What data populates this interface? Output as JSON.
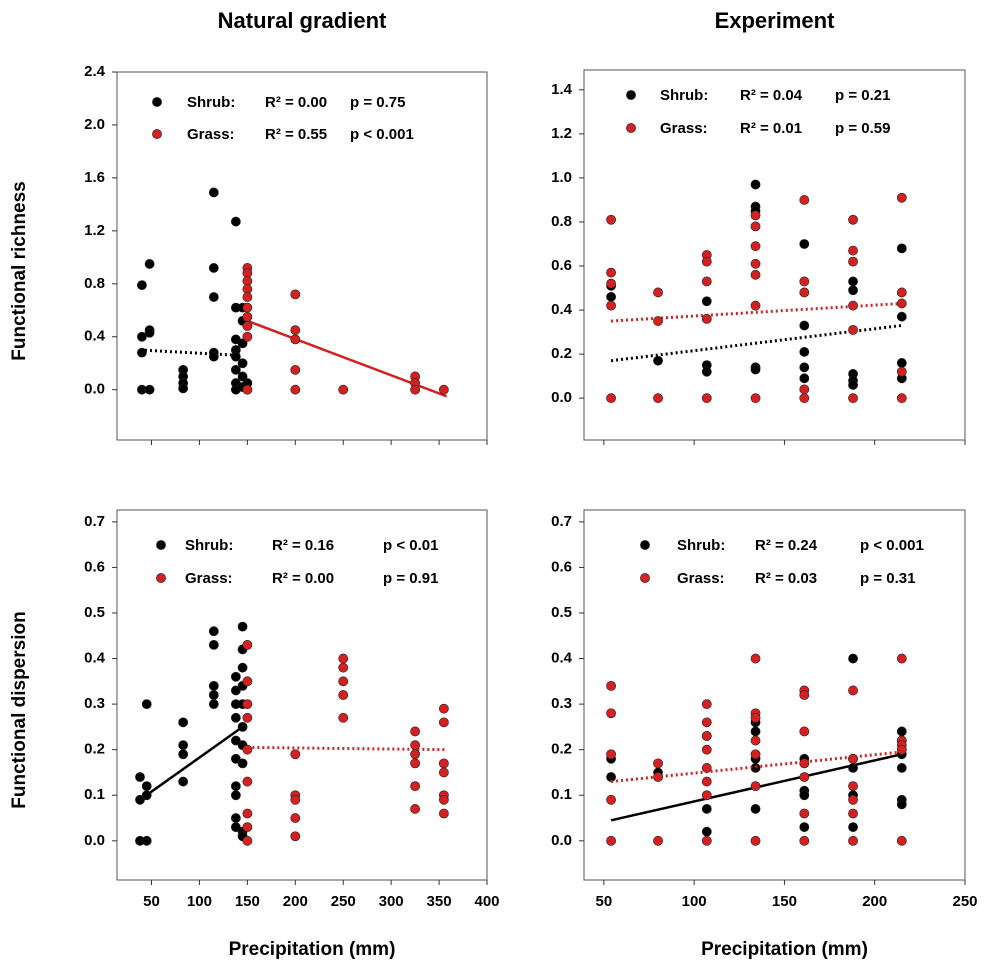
{
  "chart_data": [
    {
      "type": "scatter",
      "title": "Natural gradient",
      "ylabel": "Functional richness",
      "show_xtick_labels": false,
      "xlim": [
        14,
        400
      ],
      "ylim": [
        -0.38,
        2.4
      ],
      "xticks": [
        50,
        100,
        150,
        200,
        250,
        300,
        350,
        400
      ],
      "yticks": [
        {
          "value": 0,
          "label": "0.0"
        },
        0.4,
        0.8,
        1.2,
        1.6,
        {
          "value": 2,
          "label": "2.0"
        },
        2.4
      ],
      "series": [
        {
          "name": "Shrub:",
          "color": "#000000",
          "stat_r2": "R² = 0.00",
          "stat_p": "p = 0.75",
          "stat_color": "#8c8c8c",
          "x": [
            40,
            40,
            40,
            40,
            48,
            48,
            48,
            48,
            83,
            83,
            83,
            83,
            115,
            115,
            115,
            115,
            115,
            138,
            138,
            138,
            138,
            138,
            138,
            138,
            138,
            145,
            145,
            145,
            145,
            145,
            145,
            150,
            150
          ],
          "y": [
            0.79,
            0.4,
            0.28,
            0,
            0.95,
            0.45,
            0.43,
            0,
            0.15,
            0.1,
            0.05,
            0.01,
            1.49,
            0.92,
            0.7,
            0.28,
            0.25,
            1.27,
            0.62,
            0.38,
            0.3,
            0.25,
            0.15,
            0.05,
            0,
            0.62,
            0.52,
            0.35,
            0.2,
            0.1,
            0.02,
            0.05,
            0
          ],
          "fit": {
            "x": [
              38,
              140
            ],
            "y": [
              0.3,
              0.26
            ],
            "style": "dotted"
          }
        },
        {
          "name": "Grass:",
          "color": "#d42020",
          "stat_r2": "R² = 0.55",
          "stat_p": "p < 0.001",
          "stat_color": "#000000",
          "x": [
            150,
            150,
            150,
            150,
            150,
            150,
            150,
            150,
            150,
            150,
            200,
            200,
            200,
            200,
            200,
            250,
            325,
            325,
            325,
            355
          ],
          "y": [
            0.92,
            0.88,
            0.82,
            0.76,
            0.7,
            0.62,
            0.55,
            0.48,
            0.4,
            0,
            0.72,
            0.45,
            0.38,
            0.15,
            0,
            0,
            0.1,
            0.05,
            0,
            0
          ],
          "fit": {
            "x": [
              150,
              358
            ],
            "y": [
              0.52,
              -0.05
            ],
            "style": "solid"
          }
        }
      ]
    },
    {
      "type": "scatter",
      "title": "Experiment",
      "show_xtick_labels": false,
      "xlim": [
        39,
        250
      ],
      "ylim": [
        -0.19,
        1.49
      ],
      "xticks": [
        50,
        100,
        150,
        200,
        250
      ],
      "yticks": [
        {
          "value": 0,
          "label": "0.0"
        },
        0.2,
        0.4,
        0.6,
        0.8,
        {
          "value": 1,
          "label": "1.0"
        },
        1.2,
        1.4
      ],
      "series": [
        {
          "name": "Shrub:",
          "color": "#000000",
          "stat_r2": "R² = 0.04",
          "stat_p": "p = 0.21",
          "stat_color": "#8c8c8c",
          "x": [
            54,
            54,
            80,
            107,
            107,
            107,
            134,
            134,
            134,
            134,
            134,
            161,
            161,
            161,
            161,
            161,
            188,
            188,
            188,
            188,
            188,
            215,
            215,
            215,
            215
          ],
          "y": [
            0.51,
            0.46,
            0.17,
            0.44,
            0.15,
            0.12,
            0.97,
            0.87,
            0.85,
            0.14,
            0.13,
            0.7,
            0.33,
            0.21,
            0.14,
            0.09,
            0.53,
            0.49,
            0.11,
            0.08,
            0.06,
            0.68,
            0.37,
            0.16,
            0.09
          ],
          "fit": {
            "x": [
              54,
              215
            ],
            "y": [
              0.17,
              0.33
            ],
            "style": "dotted"
          }
        },
        {
          "name": "Grass:",
          "color": "#d42020",
          "stat_r2": "R² = 0.01",
          "stat_p": "p = 0.59",
          "stat_color": "#8c8c8c",
          "x": [
            54,
            54,
            54,
            54,
            54,
            80,
            80,
            80,
            107,
            107,
            107,
            107,
            107,
            134,
            134,
            134,
            134,
            134,
            134,
            134,
            161,
            161,
            161,
            161,
            161,
            188,
            188,
            188,
            188,
            188,
            188,
            215,
            215,
            215,
            215,
            215
          ],
          "y": [
            0.81,
            0.57,
            0.52,
            0.42,
            0,
            0.48,
            0.35,
            0,
            0.65,
            0.62,
            0.53,
            0.36,
            0,
            0.83,
            0.78,
            0.69,
            0.61,
            0.56,
            0.42,
            0,
            0.9,
            0.53,
            0.48,
            0.04,
            0,
            0.81,
            0.67,
            0.62,
            0.42,
            0.31,
            0,
            0.91,
            0.48,
            0.43,
            0.12,
            0
          ],
          "fit": {
            "x": [
              54,
              215
            ],
            "y": [
              0.35,
              0.43
            ],
            "style": "dotted"
          }
        }
      ]
    },
    {
      "type": "scatter",
      "ylabel": "Functional dispersion",
      "xlabel": "Precipitation (mm)",
      "show_xtick_labels": true,
      "xlim": [
        14,
        400
      ],
      "ylim": [
        -0.086,
        0.726
      ],
      "xticks": [
        50,
        100,
        150,
        200,
        250,
        300,
        350,
        400
      ],
      "yticks": [
        {
          "value": 0,
          "label": "0.0"
        },
        0.1,
        0.2,
        0.3,
        0.4,
        0.5,
        0.6,
        0.7
      ],
      "series": [
        {
          "name": "Shrub:",
          "color": "#000000",
          "stat_r2": "R² = 0.16",
          "stat_p": "p < 0.01",
          "stat_color": "#000000",
          "x": [
            38,
            38,
            38,
            45,
            45,
            45,
            45,
            83,
            83,
            83,
            83,
            115,
            115,
            115,
            115,
            115,
            138,
            138,
            138,
            138,
            138,
            138,
            138,
            138,
            138,
            138,
            145,
            145,
            145,
            145,
            145,
            145,
            145,
            145,
            145,
            145
          ],
          "y": [
            0.14,
            0.09,
            0,
            0.3,
            0.12,
            0.1,
            0,
            0.26,
            0.21,
            0.19,
            0.13,
            0.46,
            0.43,
            0.34,
            0.32,
            0.3,
            0.36,
            0.33,
            0.3,
            0.27,
            0.22,
            0.18,
            0.12,
            0.1,
            0.05,
            0.03,
            0.47,
            0.42,
            0.38,
            0.34,
            0.3,
            0.25,
            0.21,
            0.17,
            0.02,
            0.01
          ],
          "fit": {
            "x": [
              38,
              145
            ],
            "y": [
              0.09,
              0.25
            ],
            "style": "solid"
          }
        },
        {
          "name": "Grass:",
          "color": "#d42020",
          "stat_r2": "R² = 0.00",
          "stat_p": "p = 0.91",
          "stat_color": "#8c8c8c",
          "x": [
            150,
            150,
            150,
            150,
            150,
            150,
            150,
            150,
            150,
            200,
            200,
            200,
            200,
            200,
            250,
            250,
            250,
            250,
            250,
            325,
            325,
            325,
            325,
            325,
            325,
            355,
            355,
            355,
            355,
            355,
            355,
            355
          ],
          "y": [
            0.43,
            0.35,
            0.3,
            0.27,
            0.2,
            0.13,
            0.06,
            0.03,
            0,
            0.19,
            0.1,
            0.09,
            0.05,
            0.01,
            0.4,
            0.38,
            0.35,
            0.32,
            0.27,
            0.24,
            0.21,
            0.19,
            0.17,
            0.12,
            0.07,
            0.29,
            0.26,
            0.17,
            0.15,
            0.1,
            0.09,
            0.06
          ],
          "fit": {
            "x": [
              150,
              358
            ],
            "y": [
              0.205,
              0.2
            ],
            "style": "dotted"
          }
        }
      ]
    },
    {
      "type": "scatter",
      "xlabel": "Precipitation (mm)",
      "show_xtick_labels": true,
      "xlim": [
        39,
        250
      ],
      "ylim": [
        -0.086,
        0.726
      ],
      "xticks": [
        50,
        100,
        150,
        200,
        250
      ],
      "yticks": [
        {
          "value": 0,
          "label": "0.0"
        },
        0.1,
        0.2,
        0.3,
        0.4,
        0.5,
        0.6,
        0.7
      ],
      "series": [
        {
          "name": "Shrub:",
          "color": "#000000",
          "stat_r2": "R² = 0.24",
          "stat_p": "p < 0.001",
          "stat_color": "#000000",
          "x": [
            54,
            54,
            80,
            107,
            107,
            107,
            134,
            134,
            134,
            134,
            134,
            161,
            161,
            161,
            161,
            188,
            188,
            188,
            188,
            188,
            215,
            215,
            215,
            215,
            215,
            215
          ],
          "y": [
            0.18,
            0.14,
            0.15,
            0.23,
            0.07,
            0.02,
            0.26,
            0.24,
            0.18,
            0.16,
            0.07,
            0.18,
            0.11,
            0.1,
            0.03,
            0.4,
            0.18,
            0.16,
            0.1,
            0.03,
            0.24,
            0.22,
            0.19,
            0.16,
            0.09,
            0.08
          ],
          "fit": {
            "x": [
              54,
              215
            ],
            "y": [
              0.045,
              0.19
            ],
            "style": "solid"
          }
        },
        {
          "name": "Grass:",
          "color": "#d42020",
          "stat_r2": "R² = 0.03",
          "stat_p": "p = 0.31",
          "stat_color": "#8c8c8c",
          "x": [
            54,
            54,
            54,
            54,
            54,
            80,
            80,
            80,
            107,
            107,
            107,
            107,
            107,
            107,
            107,
            107,
            134,
            134,
            134,
            134,
            134,
            134,
            134,
            161,
            161,
            161,
            161,
            161,
            161,
            161,
            188,
            188,
            188,
            188,
            188,
            188,
            215,
            215,
            215,
            215,
            215
          ],
          "y": [
            0.34,
            0.28,
            0.19,
            0.09,
            0,
            0.17,
            0.14,
            0,
            0.3,
            0.26,
            0.23,
            0.2,
            0.16,
            0.13,
            0.1,
            0,
            0.4,
            0.28,
            0.27,
            0.22,
            0.19,
            0.12,
            0,
            0.33,
            0.32,
            0.24,
            0.17,
            0.14,
            0.06,
            0,
            0.33,
            0.18,
            0.12,
            0.09,
            0.06,
            0,
            0.4,
            0.22,
            0.21,
            0.2,
            0
          ],
          "fit": {
            "x": [
              54,
              215
            ],
            "y": [
              0.13,
              0.195
            ],
            "style": "dotted"
          }
        }
      ]
    }
  ]
}
